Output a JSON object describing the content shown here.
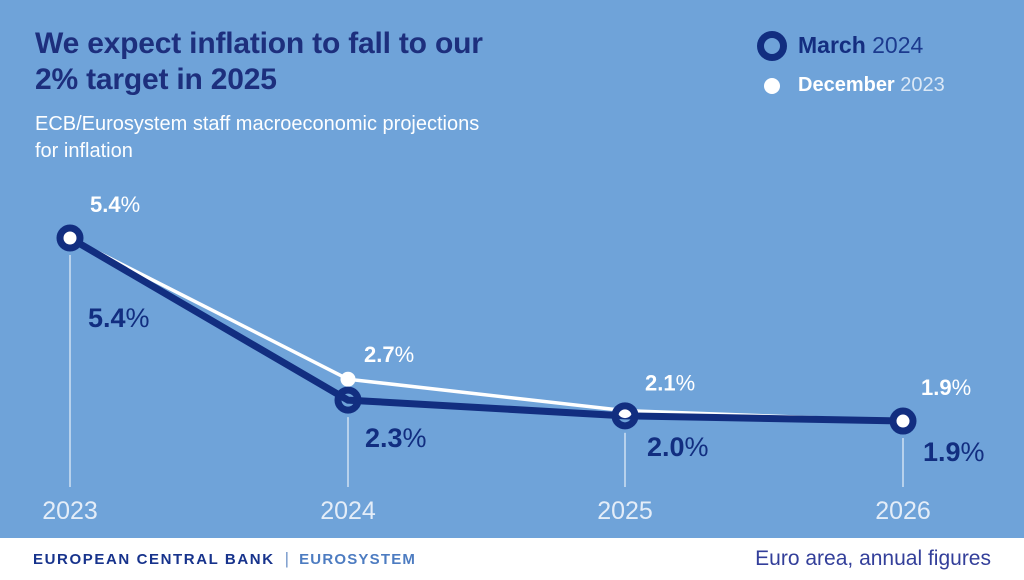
{
  "header": {
    "title_line1": "We expect inflation to fall to our",
    "title_line2": "2% target in 2025",
    "subtitle_line1": "ECB/Eurosystem staff macroeconomic projections",
    "subtitle_line2": "for inflation"
  },
  "legend": {
    "items": [
      {
        "label": "March",
        "year": "2024",
        "marker": "navy-ring"
      },
      {
        "label": "December",
        "year": "2023",
        "marker": "white-dot"
      }
    ]
  },
  "chart_data": {
    "type": "line",
    "categories": [
      "2023",
      "2024",
      "2025",
      "2026"
    ],
    "series": [
      {
        "name": "March 2024",
        "color": "#122e80",
        "marker": "ring",
        "values": [
          5.4,
          2.3,
          2.0,
          1.9
        ]
      },
      {
        "name": "December 2023",
        "color": "#ffffff",
        "marker": "dot",
        "values": [
          5.4,
          2.7,
          2.1,
          1.9
        ]
      }
    ],
    "unit": "%",
    "ylim": [
      1.5,
      5.8
    ],
    "grid": "off",
    "gridlines": "vertical drop line under each point",
    "legend_position": "top-right",
    "annotations": "every point labeled with its value; white labels above points (December 2023), navy labels below (March 2024)"
  },
  "footer": {
    "brand": "EUROPEAN CENTRAL BANK",
    "separator": "|",
    "system": "EUROSYSTEM",
    "note": "Euro area, annual figures"
  },
  "colors": {
    "background": "#6fa3d9",
    "navy": "#122e80",
    "title_navy": "#1d2f7d",
    "white": "#ffffff",
    "footer_bg": "#ffffff",
    "eurosystem_blue": "#4d7cc1",
    "note_blue": "#333f9a",
    "axis_label": "#e4edf8",
    "drop_line": "rgba(255,255,255,0.5)"
  }
}
